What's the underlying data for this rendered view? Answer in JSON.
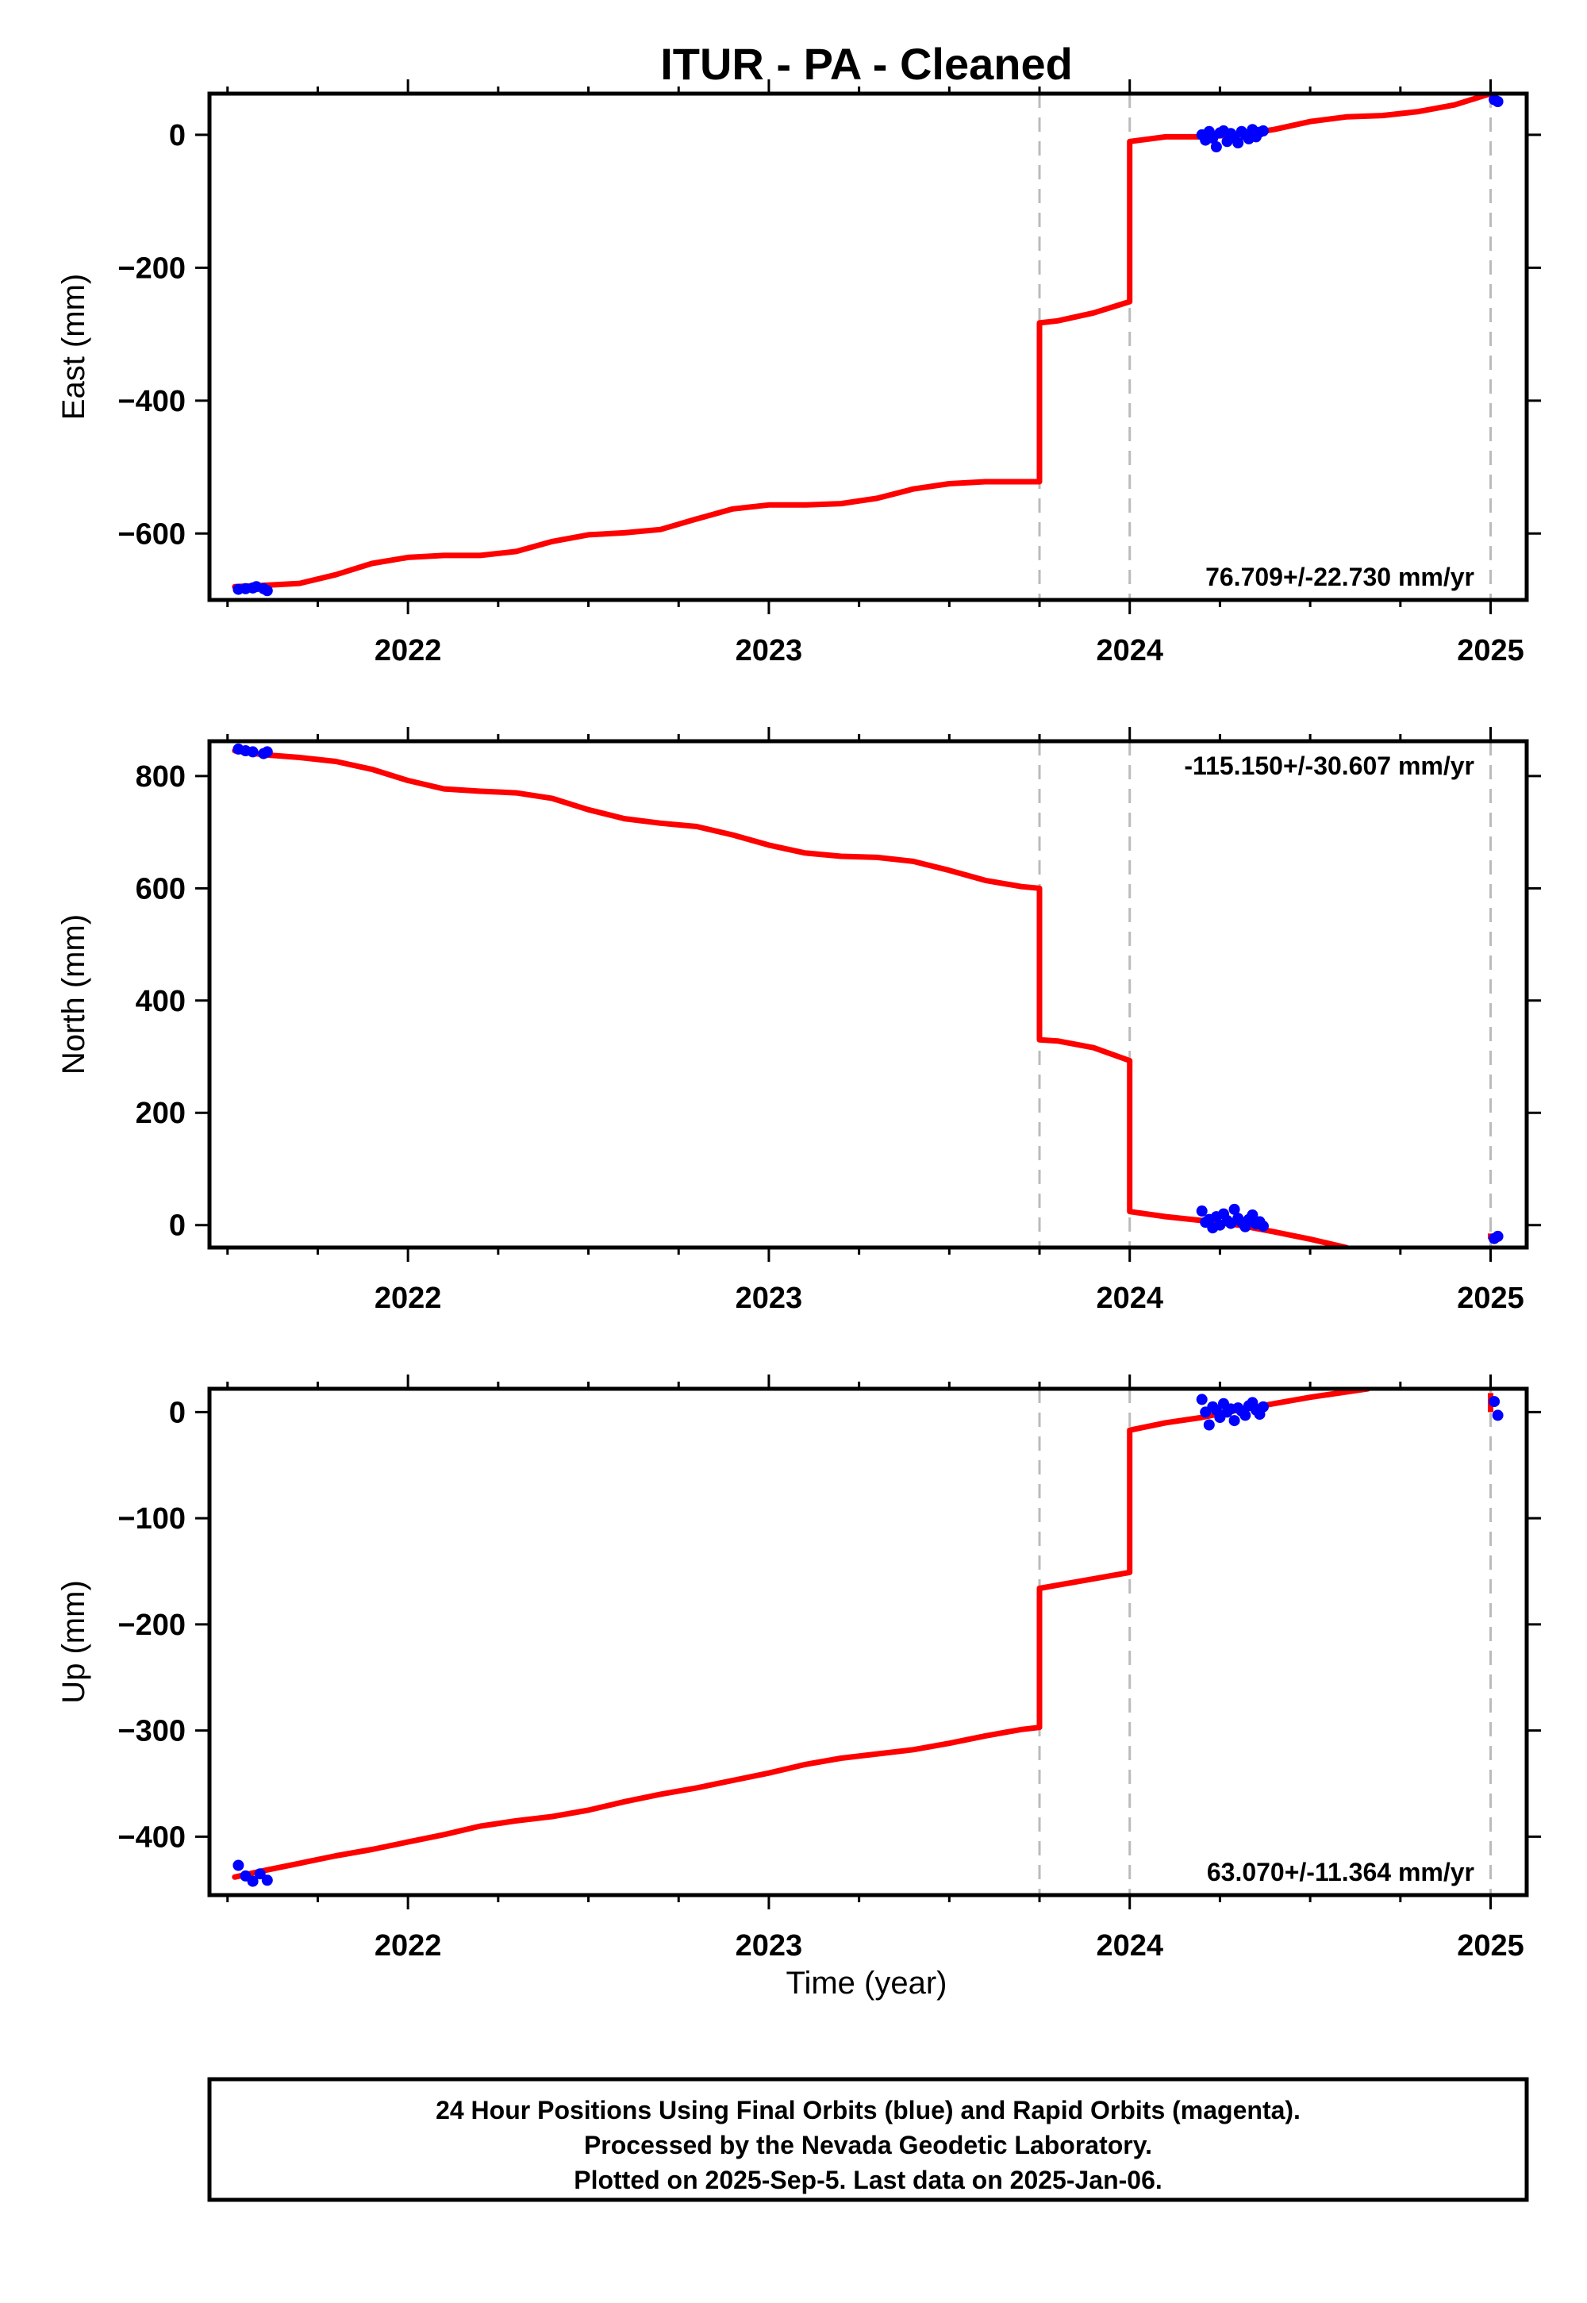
{
  "chart_data": {
    "type": "scatter",
    "title": "ITUR  - PA - Cleaned",
    "xlabel": "Time (year)",
    "xlim": [
      2021.45,
      2025.1
    ],
    "x_ticks": [
      2022,
      2023,
      2024,
      2025
    ],
    "x_tick_labels": [
      "2022",
      "2023",
      "2024",
      "2025"
    ],
    "steps": [
      2023.75,
      2024.0,
      2025.0
    ],
    "line_color": "#ff0000",
    "point_color": "#0000ff",
    "step_line_color": "#bbbbbb",
    "panels": [
      {
        "id": "east",
        "ylabel": "East (mm)",
        "ylim": [
          -700,
          62
        ],
        "y_ticks": [
          0,
          -200,
          -400,
          -600
        ],
        "y_tick_labels": [
          "0",
          "−200",
          "−400",
          "−600"
        ],
        "rate": "76.709+/-22.730 mm/yr",
        "rate_position": "bottom-right",
        "model": {
          "x": [
            2021.52,
            2021.6,
            2021.7,
            2021.8,
            2021.9,
            2022.0,
            2022.1,
            2022.2,
            2022.3,
            2022.4,
            2022.5,
            2022.6,
            2022.7,
            2022.8,
            2022.9,
            2023.0,
            2023.1,
            2023.2,
            2023.3,
            2023.4,
            2023.5,
            2023.6,
            2023.7,
            2023.75,
            2023.75,
            2023.8,
            2023.9,
            2024.0,
            2024.0,
            2024.1,
            2024.2,
            2024.3,
            2024.4,
            2024.5,
            2024.6,
            2024.7,
            2024.8,
            2024.9,
            2025.0
          ],
          "y": [
            -680,
            -678,
            -675,
            -662,
            -645,
            -636,
            -633,
            -633,
            -627,
            -612,
            -602,
            -599,
            -594,
            -578,
            -563,
            -557,
            -557,
            -555,
            -547,
            -533,
            -525,
            -522,
            -522,
            -522,
            -283,
            -280,
            -268,
            -251,
            -10,
            -3,
            -3,
            0,
            8,
            20,
            27,
            29,
            35,
            45,
            62
          ]
        },
        "points": {
          "x": [
            2021.53,
            2021.55,
            2021.57,
            2021.58,
            2021.6,
            2021.61,
            2024.2,
            2024.21,
            2024.22,
            2024.23,
            2024.24,
            2024.25,
            2024.26,
            2024.27,
            2024.28,
            2024.29,
            2024.3,
            2024.31,
            2024.32,
            2024.33,
            2024.34,
            2024.35,
            2024.36,
            2024.37,
            2025.01,
            2025.02
          ],
          "y": [
            -684,
            -683,
            -682,
            -680,
            -683,
            -686,
            0,
            -8,
            5,
            -5,
            -18,
            3,
            6,
            -10,
            2,
            -4,
            -12,
            5,
            0,
            -6,
            8,
            -3,
            4,
            6,
            53,
            50
          ]
        }
      },
      {
        "id": "north",
        "ylabel": "North (mm)",
        "ylim": [
          -40,
          862
        ],
        "y_ticks": [
          800,
          600,
          400,
          200,
          0
        ],
        "y_tick_labels": [
          "800",
          "600",
          "400",
          "200",
          "0"
        ],
        "rate": "-115.150+/-30.607 mm/yr",
        "rate_position": "top-right",
        "model": {
          "x": [
            2021.52,
            2021.6,
            2021.7,
            2021.8,
            2021.9,
            2022.0,
            2022.1,
            2022.2,
            2022.3,
            2022.4,
            2022.5,
            2022.6,
            2022.7,
            2022.8,
            2022.9,
            2023.0,
            2023.1,
            2023.2,
            2023.3,
            2023.4,
            2023.5,
            2023.6,
            2023.7,
            2023.75,
            2023.75,
            2023.8,
            2023.9,
            2024.0,
            2024.0,
            2024.1,
            2024.2,
            2024.3,
            2024.4,
            2024.5,
            2024.6
          ],
          "y": [
            845,
            838,
            833,
            826,
            812,
            792,
            777,
            773,
            770,
            760,
            740,
            724,
            716,
            710,
            695,
            677,
            663,
            657,
            655,
            648,
            632,
            614,
            603,
            600,
            330,
            328,
            316,
            293,
            24,
            15,
            8,
            0,
            -12,
            -25,
            -40
          ]
        },
        "extra_model": {
          "x": [
            2025.0,
            2025.0
          ],
          "y": [
            -25,
            -15
          ]
        },
        "points": {
          "x": [
            2021.53,
            2021.55,
            2021.57,
            2021.6,
            2021.61,
            2024.2,
            2024.21,
            2024.22,
            2024.23,
            2024.24,
            2024.25,
            2024.26,
            2024.27,
            2024.28,
            2024.29,
            2024.3,
            2024.31,
            2024.32,
            2024.33,
            2024.34,
            2024.35,
            2024.36,
            2024.37,
            2025.01,
            2025.02
          ],
          "y": [
            848,
            845,
            843,
            840,
            843,
            25,
            5,
            10,
            -5,
            15,
            0,
            20,
            8,
            3,
            28,
            12,
            5,
            -3,
            10,
            18,
            2,
            6,
            -2,
            -24,
            -20
          ]
        }
      },
      {
        "id": "up",
        "ylabel": "Up (mm)",
        "ylim": [
          -455,
          22
        ],
        "y_ticks": [
          0,
          -100,
          -200,
          -300,
          -400
        ],
        "y_tick_labels": [
          "0",
          "−100",
          "−200",
          "−300",
          "−400"
        ],
        "rate": "63.070+/-11.364 mm/yr",
        "rate_position": "bottom-right",
        "model": {
          "x": [
            2021.52,
            2021.6,
            2021.7,
            2021.8,
            2021.9,
            2022.0,
            2022.1,
            2022.2,
            2022.3,
            2022.4,
            2022.5,
            2022.6,
            2022.7,
            2022.8,
            2022.9,
            2023.0,
            2023.1,
            2023.2,
            2023.3,
            2023.4,
            2023.5,
            2023.6,
            2023.7,
            2023.75,
            2023.75,
            2023.8,
            2023.9,
            2024.0,
            2024.0,
            2024.1,
            2024.2,
            2024.3,
            2024.4,
            2024.5,
            2024.6,
            2024.66
          ],
          "y": [
            -438,
            -432,
            -425,
            -418,
            -412,
            -405,
            -398,
            -390,
            -385,
            -381,
            -375,
            -367,
            -360,
            -354,
            -347,
            -340,
            -332,
            -326,
            -322,
            -318,
            -312,
            -305,
            -299,
            -297,
            -166,
            -163,
            -157,
            -151,
            -17,
            -10,
            -5,
            2,
            8,
            14,
            19,
            22
          ]
        },
        "extra_model": {
          "x": [
            2025.0,
            2025.0
          ],
          "y": [
            18,
            0
          ]
        },
        "points": {
          "x": [
            2021.53,
            2021.55,
            2021.57,
            2021.59,
            2021.61,
            2024.2,
            2024.21,
            2024.22,
            2024.23,
            2024.24,
            2024.25,
            2024.26,
            2024.27,
            2024.28,
            2024.29,
            2024.3,
            2024.31,
            2024.32,
            2024.33,
            2024.34,
            2024.35,
            2024.36,
            2024.37,
            2025.01,
            2025.02
          ],
          "y": [
            -427,
            -437,
            -442,
            -435,
            -441,
            12,
            0,
            -12,
            5,
            2,
            -5,
            8,
            0,
            3,
            -8,
            4,
            1,
            -3,
            6,
            9,
            2,
            -2,
            5,
            10,
            -3
          ]
        }
      }
    ]
  },
  "footer": {
    "line1": "24 Hour Positions Using Final Orbits (blue) and Rapid Orbits (magenta).",
    "line2": "Processed by the Nevada Geodetic Laboratory.",
    "line3": "Plotted on 2025-Sep-5. Last data on 2025-Jan-06."
  }
}
